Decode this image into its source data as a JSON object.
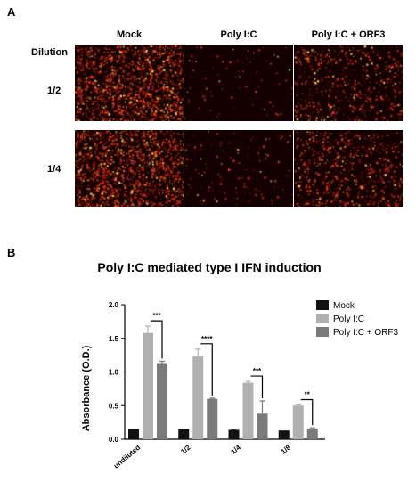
{
  "figure": {
    "panel_a_label": "A",
    "panel_b_label": "B",
    "columns": [
      "Mock",
      "Poly I:C",
      "Poly I:C + ORF3"
    ],
    "row_header": "Dilution",
    "rows": [
      "1/2",
      "1/4"
    ],
    "micrograph_density": [
      [
        1.0,
        0.05,
        0.35
      ],
      [
        1.0,
        0.08,
        0.45
      ]
    ],
    "micrograph_colors": {
      "background": "#150000",
      "signal": "#e63a1a",
      "highlight": "#ffd24a"
    }
  },
  "chart_data": {
    "type": "bar",
    "title": "Poly I:C mediated type I IFN induction",
    "ylabel": "Absorbance (O.D.)",
    "xlabel": "",
    "categories": [
      "undiluted",
      "1/2",
      "1/4",
      "1/8"
    ],
    "ylim": [
      0,
      2.0
    ],
    "yticks": [
      "0.0",
      "0.5",
      "1.0",
      "1.5",
      "2.0"
    ],
    "legend_position": "right",
    "series": [
      {
        "name": "Mock",
        "color": "#111111",
        "values": [
          0.15,
          0.15,
          0.14,
          0.13
        ],
        "errors": [
          0.0,
          0.0,
          0.01,
          0.0
        ]
      },
      {
        "name": "Poly I:C",
        "color": "#b0b0b0",
        "values": [
          1.58,
          1.23,
          0.84,
          0.5
        ],
        "errors": [
          0.1,
          0.11,
          0.02,
          0.01
        ]
      },
      {
        "name": "Poly I:C + ORF3",
        "color": "#7a7a7a",
        "values": [
          1.12,
          0.6,
          0.38,
          0.16
        ],
        "errors": [
          0.04,
          0.01,
          0.19,
          0.01
        ]
      }
    ],
    "significance": [
      "***",
      "****",
      "***",
      "**"
    ]
  }
}
